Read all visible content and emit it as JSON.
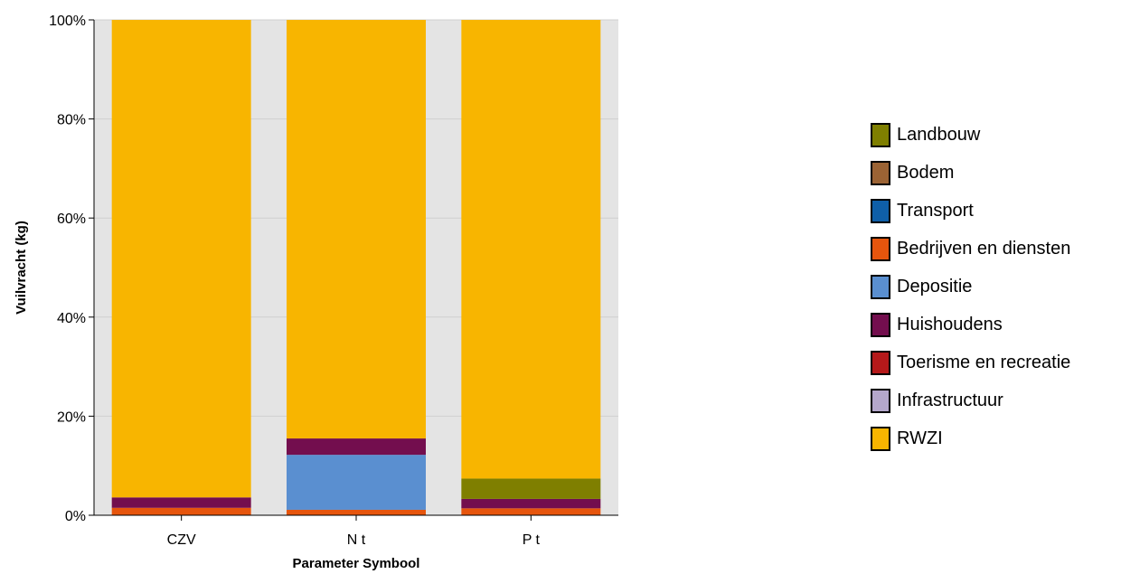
{
  "chart_data": {
    "type": "bar",
    "stacked": true,
    "normalized": true,
    "xlabel": "Parameter Symbool",
    "ylabel": "Vuilvracht (kg)",
    "categories": [
      "CZV",
      "N t",
      "P t"
    ],
    "y_ticks": [
      "0%",
      "20%",
      "40%",
      "60%",
      "80%",
      "100%"
    ],
    "ylim": [
      0,
      100
    ],
    "grid": true,
    "legend_position": "right",
    "series": [
      {
        "name": "Bedrijven en diensten",
        "color": "#E6550D",
        "values": [
          1.5,
          1.1,
          1.4
        ]
      },
      {
        "name": "Depositie",
        "color": "#5A8FD0",
        "values": [
          0,
          11.1,
          0
        ]
      },
      {
        "name": "Huishoudens",
        "color": "#730E4E",
        "values": [
          2.1,
          3.3,
          1.9
        ]
      },
      {
        "name": "Landbouw",
        "color": "#7F7F00",
        "values": [
          0,
          0,
          4.1
        ]
      },
      {
        "name": "RWZI",
        "color": "#F8B500",
        "values": [
          96.4,
          84.5,
          92.6
        ]
      }
    ],
    "legend": [
      {
        "name": "Landbouw",
        "color": "#7F7F00"
      },
      {
        "name": "Bodem",
        "color": "#9B6334"
      },
      {
        "name": "Transport",
        "color": "#0F5FA8"
      },
      {
        "name": "Bedrijven en diensten",
        "color": "#E6550D"
      },
      {
        "name": "Depositie",
        "color": "#5A8FD0"
      },
      {
        "name": "Huishoudens",
        "color": "#730E4E"
      },
      {
        "name": "Toerisme en recreatie",
        "color": "#B5191A"
      },
      {
        "name": "Infrastructuur",
        "color": "#B4A7CB"
      },
      {
        "name": "RWZI",
        "color": "#F8B500"
      }
    ]
  }
}
